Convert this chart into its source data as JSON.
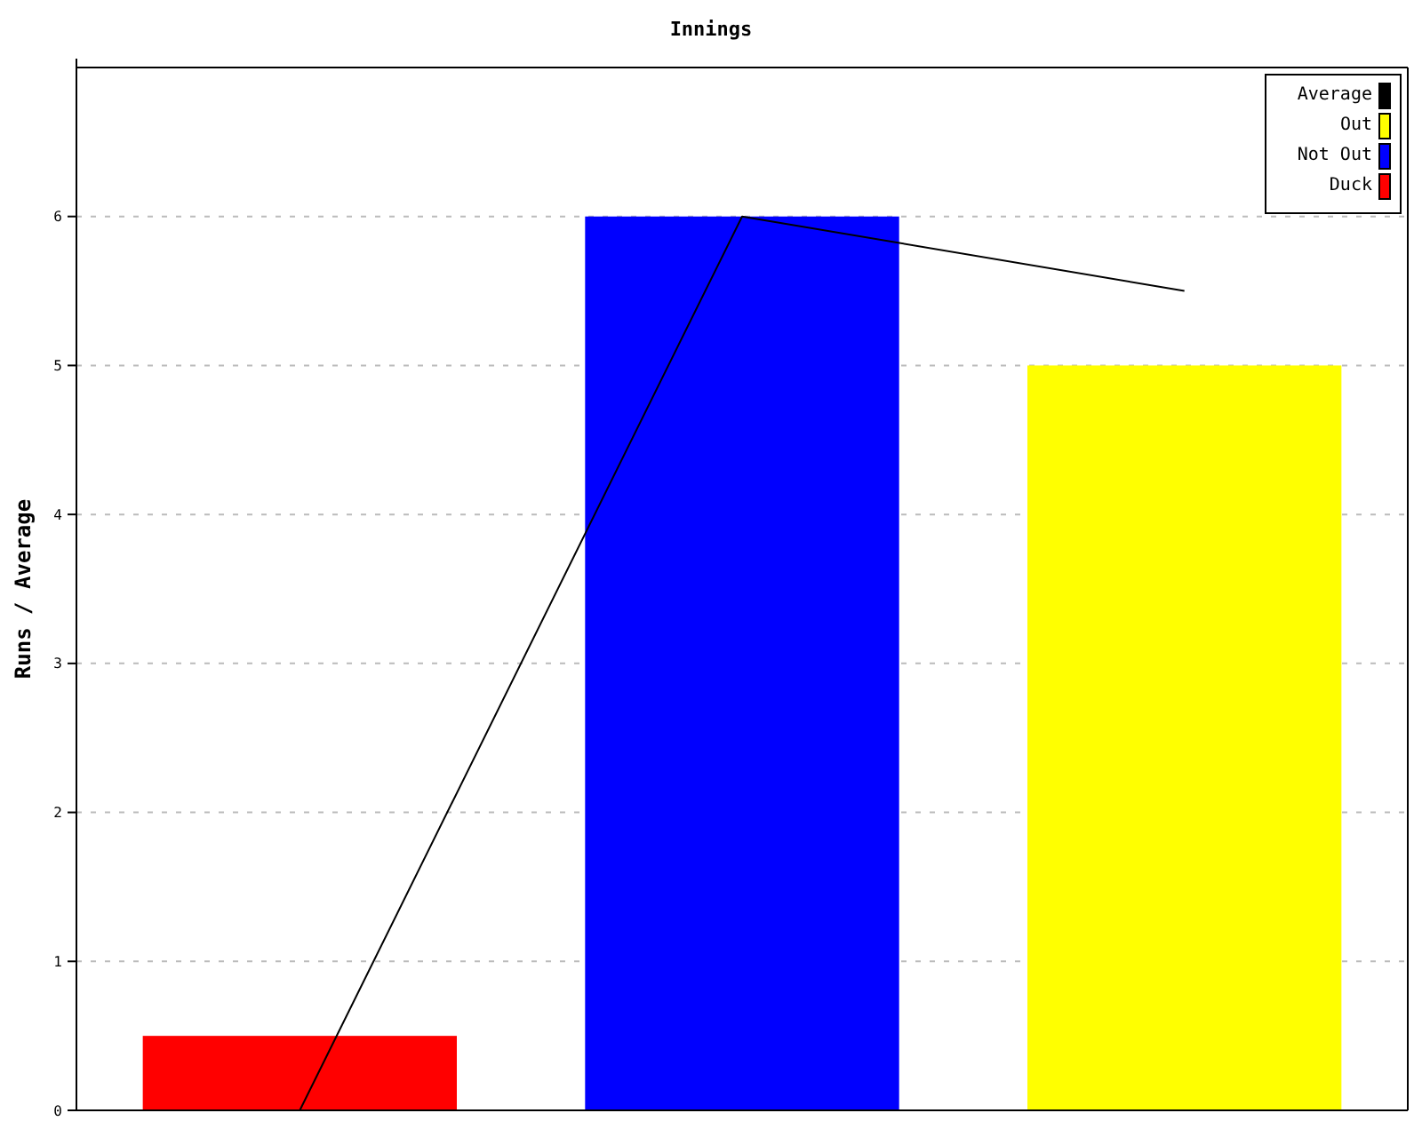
{
  "chart_data": {
    "type": "bar",
    "title": "Innings",
    "ylabel": "Runs / Average",
    "categories": [
      null,
      null,
      null
    ],
    "stacked": true,
    "series": [
      {
        "name": "Duck",
        "color": "#ff0000",
        "values": [
          0.5,
          null,
          null
        ]
      },
      {
        "name": "Not Out",
        "color": "#0000ff",
        "values": [
          null,
          6,
          null
        ]
      },
      {
        "name": "Out",
        "color": "#ffff00",
        "values": [
          null,
          null,
          5
        ]
      },
      {
        "name": "Average",
        "type": "line",
        "color": "#000000",
        "values": [
          0,
          6,
          5.5
        ]
      }
    ],
    "ylim": [
      0,
      7
    ],
    "yticks": [
      0,
      1,
      2,
      3,
      4,
      5,
      6
    ],
    "grid": "y",
    "legend": "top right",
    "marker": "none",
    "line_style": "solid"
  }
}
